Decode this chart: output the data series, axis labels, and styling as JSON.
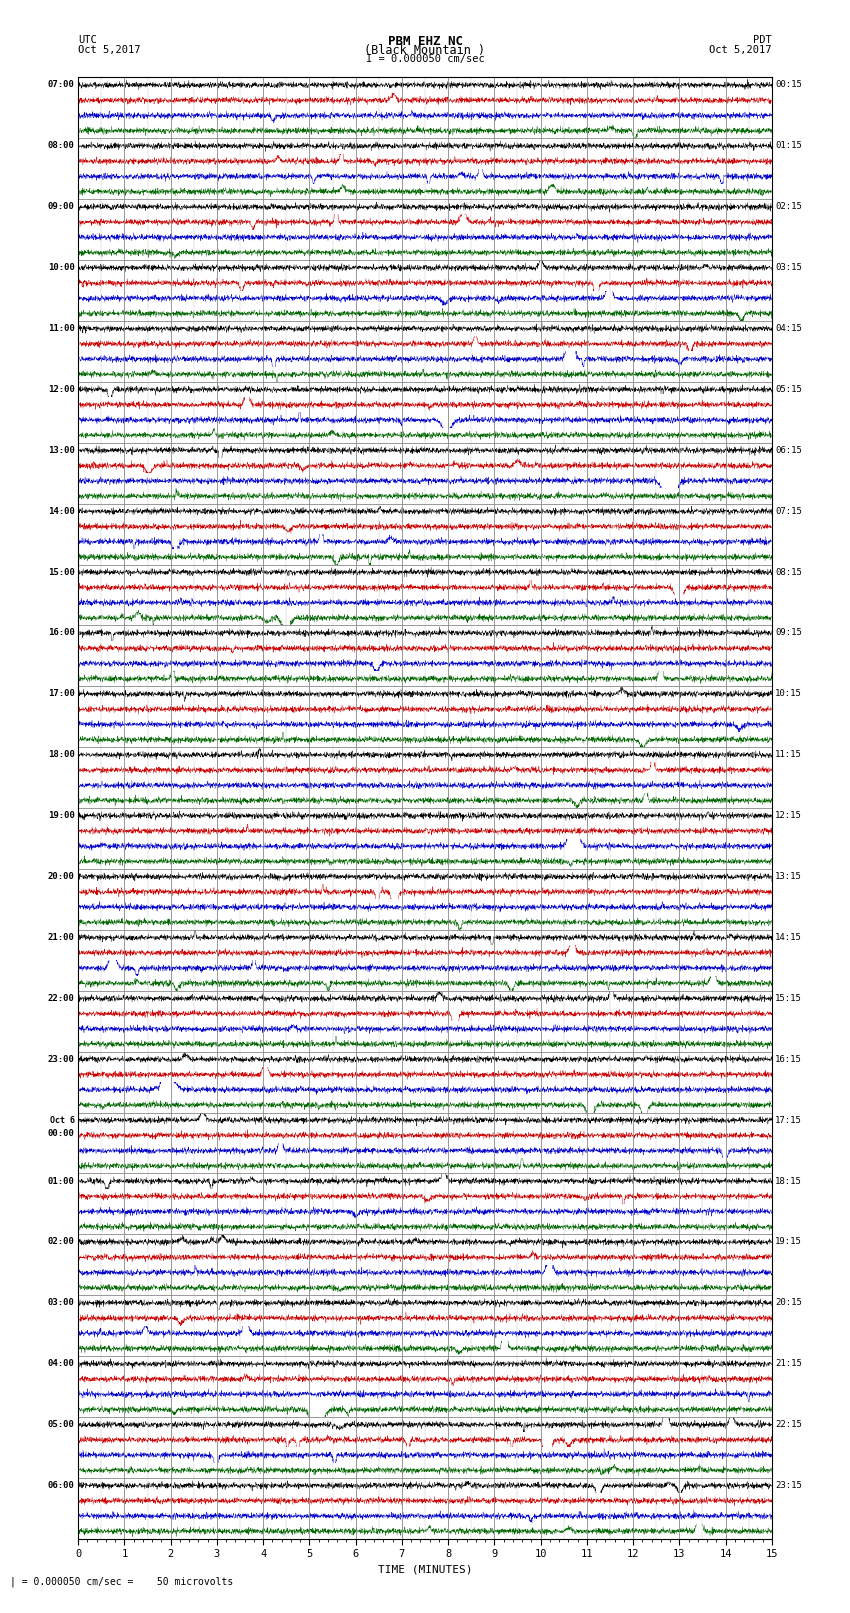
{
  "title_line1": "PBM EHZ NC",
  "title_line2": "(Black Mountain )",
  "scale_label": "I = 0.000050 cm/sec",
  "utc_label": "UTC",
  "utc_date": "Oct 5,2017",
  "pdt_label": "PDT",
  "pdt_date": "Oct 5,2017",
  "bottom_label": "| = 0.000050 cm/sec =    50 microvolts",
  "xlabel": "TIME (MINUTES)",
  "bg_color": "#ffffff",
  "plot_bg_color": "#ffffff",
  "trace_colors": [
    "#000000",
    "#cc0000",
    "#0000cc",
    "#006600"
  ],
  "grid_color": "#888888",
  "left_utc_labels": [
    "07:00",
    "08:00",
    "09:00",
    "10:00",
    "11:00",
    "12:00",
    "13:00",
    "14:00",
    "15:00",
    "16:00",
    "17:00",
    "18:00",
    "19:00",
    "20:00",
    "21:00",
    "22:00",
    "23:00",
    "Oct 6\n00:00",
    "01:00",
    "02:00",
    "03:00",
    "04:00",
    "05:00",
    "06:00"
  ],
  "right_pdt_labels": [
    "00:15",
    "01:15",
    "02:15",
    "03:15",
    "04:15",
    "05:15",
    "06:15",
    "07:15",
    "08:15",
    "09:15",
    "10:15",
    "11:15",
    "12:15",
    "13:15",
    "14:15",
    "15:15",
    "16:15",
    "17:15",
    "18:15",
    "19:15",
    "20:15",
    "21:15",
    "22:15",
    "23:15"
  ],
  "n_rows": 24,
  "n_traces_per_row": 4,
  "time_minutes": 15,
  "samples_per_minute": 200,
  "noise_base": 0.25,
  "seed": 42
}
